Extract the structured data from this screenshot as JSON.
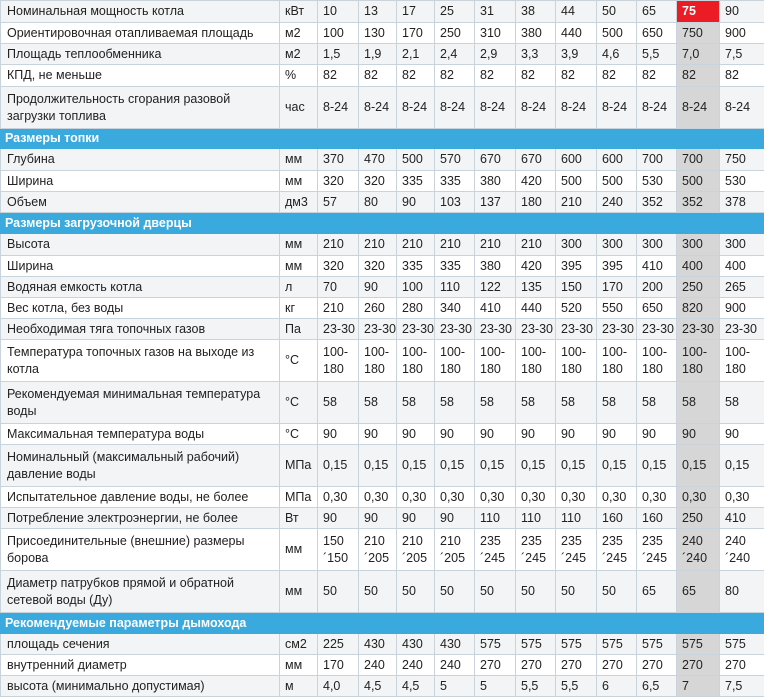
{
  "colors": {
    "header": "#39a9de",
    "highlight_head": "#ec1c24",
    "highlight_col": "#d6d6d6"
  },
  "highlight_index": 9,
  "rows": [
    {
      "type": "row",
      "label": "Номинальная мощность котла",
      "unit": "кВт",
      "values": [
        "10",
        "13",
        "17",
        "25",
        "31",
        "38",
        "44",
        "50",
        "65",
        "75",
        "90"
      ],
      "h": 22
    },
    {
      "type": "row",
      "label": "Ориентировочная отапливаемая площадь",
      "unit": "м2",
      "values": [
        "100",
        "130",
        "170",
        "250",
        "310",
        "380",
        "440",
        "500",
        "650",
        "750",
        "900"
      ],
      "h": 21
    },
    {
      "type": "row",
      "label": "Площадь теплообменника",
      "unit": "м2",
      "values": [
        "1,5",
        "1,9",
        "2,1",
        "2,4",
        "2,9",
        "3,3",
        "3,9",
        "4,6",
        "5,5",
        "7,0",
        "7,5"
      ],
      "h": 21
    },
    {
      "type": "row",
      "label": "КПД, не меньше",
      "unit": "%",
      "values": [
        "82",
        "82",
        "82",
        "82",
        "82",
        "82",
        "82",
        "82",
        "82",
        "82",
        "82"
      ],
      "h": 22
    },
    {
      "type": "row",
      "label": "Продолжительность сгорания разовой загрузки топлива",
      "unit": "час",
      "values": [
        "8-24",
        "8-24",
        "8-24",
        "8-24",
        "8-24",
        "8-24",
        "8-24",
        "8-24",
        "8-24",
        "8-24",
        "8-24"
      ],
      "h": 42
    },
    {
      "type": "section",
      "label": "Размеры топки",
      "h": 20
    },
    {
      "type": "row",
      "label": "Глубина",
      "unit": "мм",
      "values": [
        "370",
        "470",
        "500",
        "570",
        "670",
        "670",
        "600",
        "600",
        "700",
        "700",
        "750"
      ],
      "h": 22
    },
    {
      "type": "row",
      "label": "Ширина",
      "unit": "мм",
      "values": [
        "320",
        "320",
        "335",
        "335",
        "380",
        "420",
        "500",
        "500",
        "530",
        "500",
        "530"
      ],
      "h": 21
    },
    {
      "type": "row",
      "label": "Объем",
      "unit": "дм3",
      "values": [
        "57",
        "80",
        "90",
        "103",
        "137",
        "180",
        "210",
        "240",
        "352",
        "352",
        "378"
      ],
      "h": 21
    },
    {
      "type": "section",
      "label": "Размеры загрузочной дверцы",
      "h": 21
    },
    {
      "type": "row",
      "label": "Высота",
      "unit": "мм",
      "values": [
        "210",
        "210",
        "210",
        "210",
        "210",
        "210",
        "300",
        "300",
        "300",
        "300",
        "300"
      ],
      "h": 22
    },
    {
      "type": "row",
      "label": "Ширина",
      "unit": "мм",
      "values": [
        "320",
        "320",
        "335",
        "335",
        "380",
        "420",
        "395",
        "395",
        "410",
        "400",
        "400"
      ],
      "h": 21
    },
    {
      "type": "row",
      "label": "Водяная емкость котла",
      "unit": "л",
      "values": [
        "70",
        "90",
        "100",
        "110",
        "122",
        "135",
        "150",
        "170",
        "200",
        "250",
        "265"
      ],
      "h": 21
    },
    {
      "type": "row",
      "label": "Вес  котла, без воды",
      "unit": "кг",
      "values": [
        "210",
        "260",
        "280",
        "340",
        "410",
        "440",
        "520",
        "550",
        "650",
        "820",
        "900"
      ],
      "h": 21
    },
    {
      "type": "row",
      "label": "Необходимая тяга топочных газов",
      "unit": "Па",
      "values": [
        "23-30",
        "23-30",
        "23-30",
        "23-30",
        "23-30",
        "23-30",
        "23-30",
        "23-30",
        "23-30",
        "23-30",
        "23-30"
      ],
      "h": 21
    },
    {
      "type": "row",
      "label": "Температура топочных газов на выходе из котла",
      "unit": "°С",
      "values": [
        "100-180",
        "100-180",
        "100-180",
        "100-180",
        "100-180",
        "100-180",
        "100-180",
        "100-180",
        "100-180",
        "100-180",
        "100-180"
      ],
      "wrap": true,
      "h": 42
    },
    {
      "type": "row",
      "label": "Рекомендуемая минимальная температура воды",
      "unit": "°С",
      "values": [
        "58",
        "58",
        "58",
        "58",
        "58",
        "58",
        "58",
        "58",
        "58",
        "58",
        "58"
      ],
      "h": 42
    },
    {
      "type": "row",
      "label": "Максимальная температура воды",
      "unit": "°С",
      "values": [
        "90",
        "90",
        "90",
        "90",
        "90",
        "90",
        "90",
        "90",
        "90",
        "90",
        "90"
      ],
      "h": 21
    },
    {
      "type": "row",
      "label": "Номинальный (максимальный рабочий) давление воды",
      "unit": "МПа",
      "values": [
        "0,15",
        "0,15",
        "0,15",
        "0,15",
        "0,15",
        "0,15",
        "0,15",
        "0,15",
        "0,15",
        "0,15",
        "0,15"
      ],
      "h": 42
    },
    {
      "type": "row",
      "label": "Испытательное давление воды, не более",
      "unit": "МПа",
      "values": [
        "0,30",
        "0,30",
        "0,30",
        "0,30",
        "0,30",
        "0,30",
        "0,30",
        "0,30",
        "0,30",
        "0,30",
        "0,30"
      ],
      "h": 21
    },
    {
      "type": "row",
      "label": "Потребление электроэнергии, не более",
      "unit": "Вт",
      "values": [
        "90",
        "90",
        "90",
        "90",
        "110",
        "110",
        "110",
        "160",
        "160",
        "250",
        "410"
      ],
      "h": 21
    },
    {
      "type": "row",
      "label": "Присоединительные (внешние) размеры борова",
      "unit": "мм",
      "values": [
        "150 ´150",
        "210 ´205",
        "210 ´205",
        "210 ´205",
        "235 ´245",
        "235 ´245",
        "235 ´245",
        "235 ´245",
        "235 ´245",
        "240 ´240",
        "240 ´240"
      ],
      "wrap": true,
      "h": 42
    },
    {
      "type": "row",
      "label": "Диаметр патрубков прямой и обратной сетевой воды (Ду)",
      "unit": "мм",
      "values": [
        "50",
        "50",
        "50",
        "50",
        "50",
        "50",
        "50",
        "50",
        "65",
        "65",
        "80"
      ],
      "h": 42
    },
    {
      "type": "section",
      "label": "Рекомендуемые параметры дымохода",
      "h": 21
    },
    {
      "type": "row",
      "label": "площадь сечения",
      "unit": "см2",
      "values": [
        "225",
        "430",
        "430",
        "430",
        "575",
        "575",
        "575",
        "575",
        "575",
        "575",
        "575"
      ],
      "h": 21
    },
    {
      "type": "row",
      "label": "внутренний диаметр",
      "unit": "мм",
      "values": [
        "170",
        "240",
        "240",
        "240",
        "270",
        "270",
        "270",
        "270",
        "270",
        "270",
        "270"
      ],
      "h": 21
    },
    {
      "type": "row",
      "label": "высота (минимально допустимая)",
      "unit": "м",
      "values": [
        "4,0",
        "4,5",
        "4,5",
        "5",
        "5",
        "5,5",
        "5,5",
        "6",
        "6,5",
        "7",
        "7,5"
      ],
      "h": 21
    }
  ]
}
